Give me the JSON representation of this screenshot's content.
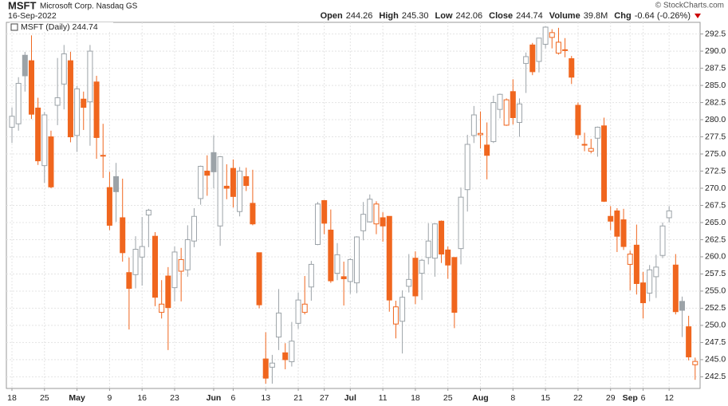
{
  "chart_data": {
    "type": "candlestick",
    "symbol": "MSFT",
    "company": "Microsoft Corp. Nasdaq GS",
    "date": "16-Sep-2022",
    "credit": "© StockCharts.com",
    "legend": "MSFT (Daily) 244.74",
    "quote": [
      {
        "label": "Open",
        "value": "244.26"
      },
      {
        "label": "High",
        "value": "245.30"
      },
      {
        "label": "Low",
        "value": "242.06"
      },
      {
        "label": "Close",
        "value": "244.74"
      },
      {
        "label": "Volume",
        "value": "39.8M"
      },
      {
        "label": "Chg",
        "value": "-0.64 (-0.26%)"
      }
    ],
    "up_color": "#9ca3a8",
    "down_color": "#f0661e",
    "grid": true,
    "categories": [
      "18",
      null,
      null,
      null,
      null,
      "25",
      null,
      null,
      null,
      null,
      "May",
      null,
      null,
      null,
      null,
      "9",
      null,
      null,
      null,
      null,
      "16",
      null,
      null,
      null,
      null,
      "23",
      null,
      null,
      null,
      null,
      null,
      "Jun",
      null,
      null,
      "6",
      null,
      null,
      null,
      null,
      "13",
      null,
      null,
      null,
      null,
      "21",
      null,
      null,
      null,
      "27",
      null,
      null,
      null,
      "Jul",
      null,
      null,
      null,
      null,
      "11",
      null,
      null,
      null,
      null,
      "18",
      null,
      null,
      null,
      null,
      "25",
      null,
      null,
      null,
      null,
      "Aug",
      null,
      null,
      null,
      null,
      "8",
      null,
      null,
      null,
      null,
      "15",
      null,
      null,
      null,
      null,
      "22",
      null,
      null,
      null,
      null,
      "29",
      null,
      null,
      "Sep",
      null,
      "6",
      null,
      null,
      null,
      "12",
      null,
      null,
      null,
      null
    ],
    "open": [
      278.9,
      279.4,
      289.4,
      288.6,
      281.7,
      273.3,
      277.5,
      282.1,
      285.2,
      288.6,
      277.7,
      283.0,
      282.6,
      285.5,
      274.8,
      270.1,
      271.7,
      265.7,
      257.7,
      257.4,
      259.96,
      266.1,
      263.0,
      251.9,
      257.2,
      255.5,
      257.9,
      258.1,
      262.3,
      268.5,
      272.5,
      275.2,
      264.5,
      270.3,
      272.9,
      266.6,
      271.7,
      267.8,
      260.6,
      245.1,
      243.9,
      248.3,
      246.0,
      244.7,
      250.3,
      251.9,
      255.6,
      261.8,
      268.2,
      263.9,
      257.6,
      257.1,
      256.4,
      256.2,
      263.8,
      265.1,
      264.8,
      265.7,
      265.9,
      250.2,
      250.6,
      255.7,
      259.8,
      257.6,
      259.9,
      259.8,
      265.2,
      261.0,
      259.9,
      261.2,
      269.8,
      277.7,
      277.8,
      276.3,
      276.8,
      281.5,
      279.2,
      284.1,
      279.6,
      288.2,
      290.9,
      288.5,
      291.0,
      292.0,
      289.7,
      290.2,
      288.9,
      282.1,
      276.4,
      275.4,
      277.3,
      279.1,
      265.9,
      266.7,
      265.4,
      258.9,
      261.7,
      256.2,
      254.7,
      257.1,
      260.2,
      265.7,
      258.8,
      253.5,
      249.8,
      244.26
    ],
    "high": [
      281.8,
      286.2,
      289.9,
      292.3,
      283.2,
      281.1,
      278.4,
      289.0,
      290.9,
      289.9,
      284.9,
      284.1,
      290.9,
      286.4,
      279.4,
      272.4,
      273.7,
      271.4,
      259.9,
      263.0,
      265.8,
      267.0,
      263.6,
      256.6,
      258.5,
      261.5,
      261.3,
      264.6,
      267.1,
      273.3,
      274.8,
      277.7,
      274.7,
      273.5,
      274.2,
      273.1,
      273.0,
      272.7,
      260.6,
      249.0,
      245.7,
      255.3,
      247.4,
      250.5,
      254.8,
      257.2,
      259.4,
      268.0,
      268.3,
      266.9,
      262.0,
      259.3,
      259.8,
      263.0,
      268.0,
      269.1,
      268.1,
      266.5,
      265.9,
      253.6,
      255.1,
      260.4,
      260.8,
      259.7,
      264.9,
      264.9,
      265.3,
      261.5,
      259.9,
      270.1,
      277.8,
      282.0,
      281.2,
      279.6,
      283.5,
      283.8,
      283.1,
      285.9,
      283.1,
      289.8,
      291.2,
      291.9,
      293.6,
      293.2,
      293.4,
      291.9,
      289.3,
      282.5,
      278.1,
      277.2,
      279.0,
      280.3,
      267.4,
      267.1,
      267.0,
      260.9,
      264.7,
      257.8,
      258.8,
      260.3,
      265.0,
      267.4,
      260.4,
      254.2,
      251.4,
      245.3
    ],
    "low": [
      276.6,
      278.4,
      284.1,
      280.1,
      273.4,
      270.8,
      270.0,
      279.2,
      281.5,
      276.7,
      275.3,
      278.5,
      276.2,
      274.3,
      271.5,
      263.9,
      265.1,
      259.3,
      249.4,
      255.4,
      255.8,
      261.4,
      252.8,
      251.0,
      246.4,
      253.5,
      253.5,
      257.1,
      261.4,
      267.6,
      268.9,
      270.0,
      261.6,
      268.4,
      267.2,
      265.9,
      269.6,
      264.6,
      252.5,
      241.5,
      241.5,
      246.4,
      243.6,
      244.0,
      249.5,
      251.6,
      253.6,
      261.7,
      263.3,
      256.2,
      256.6,
      252.9,
      254.6,
      254.7,
      262.4,
      265.0,
      263.3,
      262.2,
      252.0,
      248.1,
      245.9,
      254.8,
      253.1,
      253.7,
      258.9,
      257.1,
      259.1,
      256.8,
      249.6,
      258.9,
      266.6,
      276.6,
      275.8,
      271.3,
      276.6,
      280.2,
      279.1,
      279.3,
      277.5,
      283.9,
      286.5,
      286.9,
      290.4,
      290.4,
      289.5,
      289.1,
      285.2,
      277.2,
      275.4,
      275.1,
      274.6,
      268.0,
      263.9,
      260.7,
      261.0,
      255.1,
      254.5,
      251.0,
      253.5,
      254.0,
      259.8,
      265.0,
      251.6,
      248.3,
      244.9,
      242.06
    ],
    "close": [
      280.5,
      285.3,
      286.4,
      280.8,
      274.0,
      280.7,
      270.2,
      283.2,
      289.6,
      277.5,
      284.5,
      281.8,
      290.0,
      277.4,
      274.7,
      264.6,
      269.5,
      260.6,
      255.4,
      261.1,
      261.5,
      266.8,
      254.1,
      253.1,
      252.6,
      260.7,
      259.6,
      262.5,
      265.9,
      273.2,
      271.9,
      272.4,
      274.6,
      270.0,
      268.8,
      272.5,
      270.4,
      264.8,
      253.0,
      242.3,
      244.5,
      251.8,
      245.0,
      247.7,
      253.7,
      253.1,
      258.9,
      267.7,
      264.9,
      256.5,
      260.3,
      256.8,
      259.6,
      262.9,
      266.2,
      268.4,
      267.7,
      264.5,
      253.7,
      252.7,
      254.1,
      256.7,
      254.3,
      259.5,
      262.3,
      264.8,
      260.4,
      258.8,
      251.9,
      268.7,
      276.4,
      280.7,
      278.0,
      274.8,
      282.5,
      283.7,
      282.9,
      280.3,
      282.3,
      289.2,
      287.0,
      291.9,
      293.5,
      292.7,
      291.3,
      290.2,
      286.2,
      277.8,
      276.4,
      275.8,
      278.9,
      268.1,
      265.2,
      263.0,
      261.5,
      260.4,
      256.1,
      253.3,
      258.1,
      258.5,
      264.5,
      266.7,
      252.0,
      252.2,
      245.4,
      244.74
    ],
    "ylim": [
      240.8,
      294.2
    ],
    "yticks": [
      242.5,
      {
        "value": 245,
        "label": "245.0"
      },
      247.5,
      {
        "value": 250,
        "label": "250.0"
      },
      252.5,
      {
        "value": 255,
        "label": "255.0"
      },
      257.5,
      {
        "value": 260,
        "label": "260.0"
      },
      262.5,
      {
        "value": 265,
        "label": "265.0"
      },
      267.5,
      {
        "value": 270,
        "label": "270.0"
      },
      272.5,
      {
        "value": 275,
        "label": "275.0"
      },
      277.5,
      {
        "value": 280,
        "label": "280.0"
      },
      282.5,
      {
        "value": 285,
        "label": "285.0"
      },
      287.5,
      {
        "value": 290,
        "label": "290.0"
      },
      292.5
    ]
  }
}
